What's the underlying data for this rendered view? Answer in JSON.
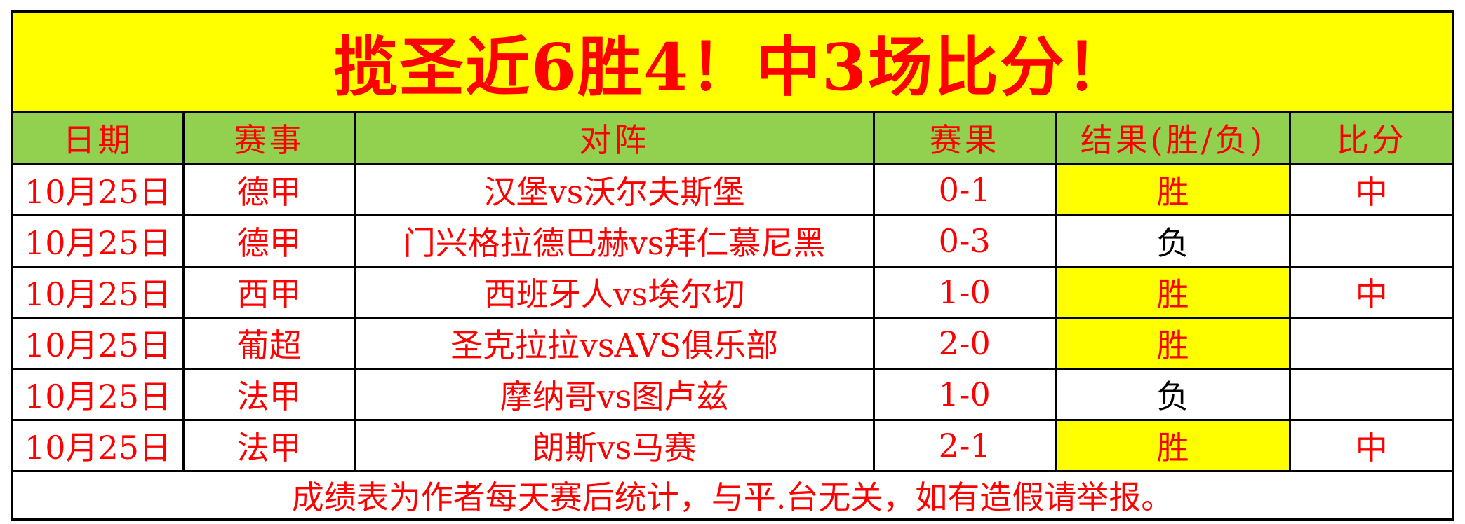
{
  "title": "揽圣近6胜4！中3场比分！",
  "footer": "成绩表为作者每天赛后统计，与平.台无关，如有造假请举报。",
  "colors": {
    "title_bg": "#FFFF00",
    "header_bg": "#92D050",
    "highlight_bg": "#FFFF00",
    "text_red": "#FF0000",
    "text_black": "#000000",
    "border": "#000000"
  },
  "table": {
    "headers": [
      "日期",
      "赛事",
      "对阵",
      "赛果",
      "结果(胜/负)",
      "比分"
    ],
    "rows": [
      {
        "date": "10月25日",
        "league": "德甲",
        "matchup": "汉堡vs沃尔夫斯堡",
        "score": "0-1",
        "result": "胜",
        "hit": "中"
      },
      {
        "date": "10月25日",
        "league": "德甲",
        "matchup": "门兴格拉德巴赫vs拜仁慕尼黑",
        "score": "0-3",
        "result": "负",
        "hit": ""
      },
      {
        "date": "10月25日",
        "league": "西甲",
        "matchup": "西班牙人vs埃尔切",
        "score": "1-0",
        "result": "胜",
        "hit": "中"
      },
      {
        "date": "10月25日",
        "league": "葡超",
        "matchup": "圣克拉拉vsAVS俱乐部",
        "score": "2-0",
        "result": "胜",
        "hit": ""
      },
      {
        "date": "10月25日",
        "league": "法甲",
        "matchup": "摩纳哥vs图卢兹",
        "score": "1-0",
        "result": "负",
        "hit": ""
      },
      {
        "date": "10月25日",
        "league": "法甲",
        "matchup": "朗斯vs马赛",
        "score": "2-1",
        "result": "胜",
        "hit": "中"
      }
    ]
  }
}
